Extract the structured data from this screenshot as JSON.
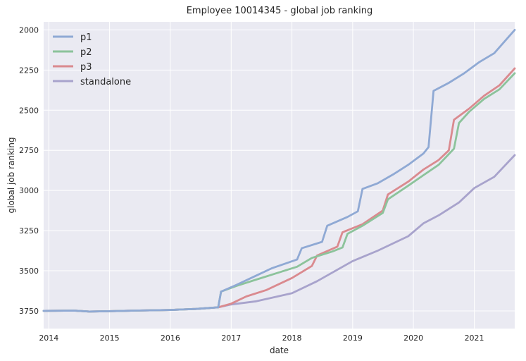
{
  "chart_data": {
    "type": "line",
    "title": "Employee  10014345  -  global job ranking",
    "xlabel": "date",
    "ylabel": "global job ranking",
    "y_inverted": true,
    "xlim": [
      "2013-12-01",
      "2021-09-01"
    ],
    "ylim": [
      3860,
      1950
    ],
    "x_ticks": [
      "2014",
      "2015",
      "2016",
      "2017",
      "2018",
      "2019",
      "2020",
      "2021"
    ],
    "y_ticks": [
      2000,
      2250,
      2500,
      2750,
      3000,
      3250,
      3500,
      3750
    ],
    "grid": true,
    "legend_position": "top-left",
    "background": "#EAEAF2",
    "series": [
      {
        "name": "p1",
        "color": "#8FA9D4",
        "points": [
          [
            "2013-12-01",
            3750
          ],
          [
            "2014-06-01",
            3748
          ],
          [
            "2014-09-01",
            3754
          ],
          [
            "2015-01-01",
            3752
          ],
          [
            "2015-06-01",
            3748
          ],
          [
            "2016-01-01",
            3744
          ],
          [
            "2016-06-01",
            3738
          ],
          [
            "2016-10-15",
            3728
          ],
          [
            "2016-11-01",
            3630
          ],
          [
            "2017-02-01",
            3588
          ],
          [
            "2017-06-01",
            3530
          ],
          [
            "2017-09-01",
            3485
          ],
          [
            "2018-02-01",
            3430
          ],
          [
            "2018-03-01",
            3360
          ],
          [
            "2018-07-01",
            3320
          ],
          [
            "2018-08-01",
            3220
          ],
          [
            "2018-12-01",
            3165
          ],
          [
            "2019-02-01",
            3130
          ],
          [
            "2019-03-01",
            2990
          ],
          [
            "2019-06-01",
            2955
          ],
          [
            "2019-09-01",
            2900
          ],
          [
            "2019-12-01",
            2840
          ],
          [
            "2020-03-01",
            2770
          ],
          [
            "2020-04-01",
            2730
          ],
          [
            "2020-05-01",
            2380
          ],
          [
            "2020-08-01",
            2330
          ],
          [
            "2020-11-01",
            2270
          ],
          [
            "2021-02-01",
            2200
          ],
          [
            "2021-05-01",
            2145
          ],
          [
            "2021-09-01",
            2000
          ]
        ]
      },
      {
        "name": "p2",
        "color": "#8CC39B",
        "points": [
          [
            "2013-12-01",
            3750
          ],
          [
            "2014-06-01",
            3748
          ],
          [
            "2014-09-01",
            3754
          ],
          [
            "2015-01-01",
            3752
          ],
          [
            "2015-06-01",
            3748
          ],
          [
            "2016-01-01",
            3744
          ],
          [
            "2016-06-01",
            3738
          ],
          [
            "2016-10-15",
            3728
          ],
          [
            "2016-11-01",
            3630
          ],
          [
            "2017-02-01",
            3595
          ],
          [
            "2017-06-01",
            3555
          ],
          [
            "2017-09-01",
            3525
          ],
          [
            "2018-02-01",
            3475
          ],
          [
            "2018-05-01",
            3420
          ],
          [
            "2018-09-01",
            3380
          ],
          [
            "2018-11-01",
            3355
          ],
          [
            "2018-12-01",
            3270
          ],
          [
            "2019-03-01",
            3220
          ],
          [
            "2019-07-01",
            3140
          ],
          [
            "2019-08-01",
            3055
          ],
          [
            "2019-12-01",
            2970
          ],
          [
            "2020-03-01",
            2905
          ],
          [
            "2020-06-01",
            2840
          ],
          [
            "2020-09-01",
            2740
          ],
          [
            "2020-10-01",
            2580
          ],
          [
            "2020-12-01",
            2510
          ],
          [
            "2021-03-01",
            2430
          ],
          [
            "2021-06-01",
            2370
          ],
          [
            "2021-09-01",
            2270
          ]
        ]
      },
      {
        "name": "p3",
        "color": "#DA8A8F",
        "points": [
          [
            "2013-12-01",
            3750
          ],
          [
            "2014-06-01",
            3748
          ],
          [
            "2014-09-01",
            3754
          ],
          [
            "2015-01-01",
            3752
          ],
          [
            "2015-06-01",
            3748
          ],
          [
            "2016-01-01",
            3744
          ],
          [
            "2016-06-01",
            3738
          ],
          [
            "2016-10-15",
            3728
          ],
          [
            "2017-01-01",
            3705
          ],
          [
            "2017-04-01",
            3660
          ],
          [
            "2017-08-01",
            3620
          ],
          [
            "2018-01-01",
            3545
          ],
          [
            "2018-05-01",
            3470
          ],
          [
            "2018-06-01",
            3405
          ],
          [
            "2018-10-01",
            3350
          ],
          [
            "2018-11-01",
            3260
          ],
          [
            "2019-03-01",
            3210
          ],
          [
            "2019-07-01",
            3125
          ],
          [
            "2019-08-01",
            3025
          ],
          [
            "2019-12-01",
            2945
          ],
          [
            "2020-03-01",
            2870
          ],
          [
            "2020-06-01",
            2810
          ],
          [
            "2020-08-01",
            2750
          ],
          [
            "2020-09-01",
            2560
          ],
          [
            "2020-12-01",
            2490
          ],
          [
            "2021-03-01",
            2410
          ],
          [
            "2021-06-01",
            2345
          ],
          [
            "2021-09-01",
            2240
          ]
        ]
      },
      {
        "name": "standalone",
        "color": "#A8A3CC",
        "points": [
          [
            "2013-12-01",
            3750
          ],
          [
            "2014-06-01",
            3748
          ],
          [
            "2014-09-01",
            3754
          ],
          [
            "2015-01-01",
            3752
          ],
          [
            "2015-06-01",
            3748
          ],
          [
            "2016-01-01",
            3744
          ],
          [
            "2016-06-01",
            3738
          ],
          [
            "2016-10-15",
            3728
          ],
          [
            "2017-01-01",
            3710
          ],
          [
            "2017-06-01",
            3690
          ],
          [
            "2018-01-01",
            3640
          ],
          [
            "2018-06-01",
            3565
          ],
          [
            "2019-01-01",
            3440
          ],
          [
            "2019-06-01",
            3375
          ],
          [
            "2019-12-01",
            3285
          ],
          [
            "2020-03-01",
            3205
          ],
          [
            "2020-06-01",
            3155
          ],
          [
            "2020-10-01",
            3075
          ],
          [
            "2021-01-01",
            2985
          ],
          [
            "2021-05-01",
            2915
          ],
          [
            "2021-09-01",
            2780
          ]
        ]
      }
    ]
  }
}
